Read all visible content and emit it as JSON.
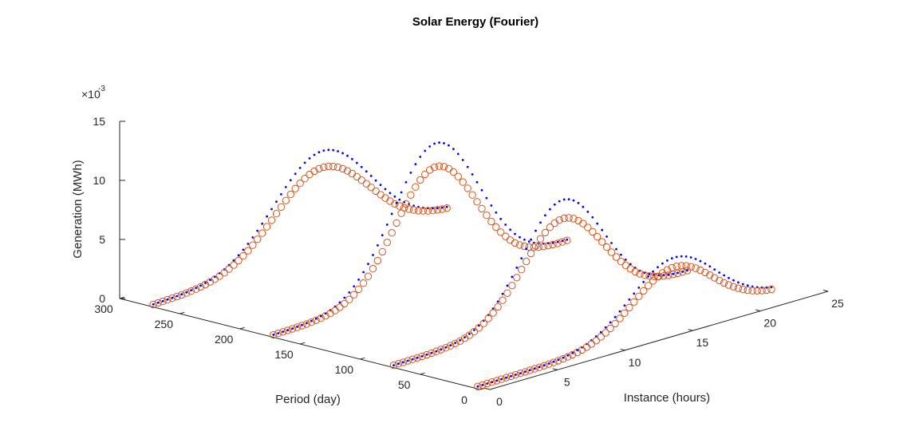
{
  "chart_data": {
    "type": "scatter",
    "title": "Solar Energy (Fourier)",
    "xlabel": "Instance (hours)",
    "ylabel": "Period (day)",
    "zlabel": "Generation (MWh)",
    "z_exponent_prefix": "×10",
    "z_exponent": "-3",
    "x_ticks": [
      "0",
      "5",
      "10",
      "15",
      "20",
      "25"
    ],
    "y_ticks": [
      "0",
      "50",
      "100",
      "150",
      "200",
      "250",
      "300"
    ],
    "z_ticks": [
      "0",
      "5",
      "10",
      "15"
    ],
    "xlim": [
      0,
      25
    ],
    "ylim": [
      0,
      300
    ],
    "zlim": [
      0,
      15
    ],
    "z_scale": 0.001,
    "periods": [
      10,
      80,
      180,
      280
    ],
    "series": [
      {
        "marker": "dot",
        "color": "#0000ff",
        "period_profiles": [
          {
            "period": 10,
            "peak_hour": 14.5,
            "peak": 5.8,
            "width": 3.2
          },
          {
            "period": 80,
            "peak_hour": 12.5,
            "peak": 9.6,
            "width": 3.0
          },
          {
            "period": 180,
            "peak_hour": 12.0,
            "peak": 12.0,
            "width": 3.2
          },
          {
            "period": 280,
            "peak_hour": 12.5,
            "peak": 8.6,
            "width": 3.6
          }
        ]
      },
      {
        "marker": "circle",
        "color": "#d95319",
        "period_profiles": [
          {
            "period": 10,
            "peak_hour": 14.5,
            "peak": 5.0,
            "width": 3.0
          },
          {
            "period": 80,
            "peak_hour": 12.5,
            "peak": 8.0,
            "width": 3.0
          },
          {
            "period": 180,
            "peak_hour": 12.0,
            "peak": 10.0,
            "width": 3.0
          },
          {
            "period": 280,
            "peak_hour": 12.5,
            "peak": 7.2,
            "width": 3.5
          }
        ]
      }
    ],
    "grid": false,
    "legend": "none"
  }
}
